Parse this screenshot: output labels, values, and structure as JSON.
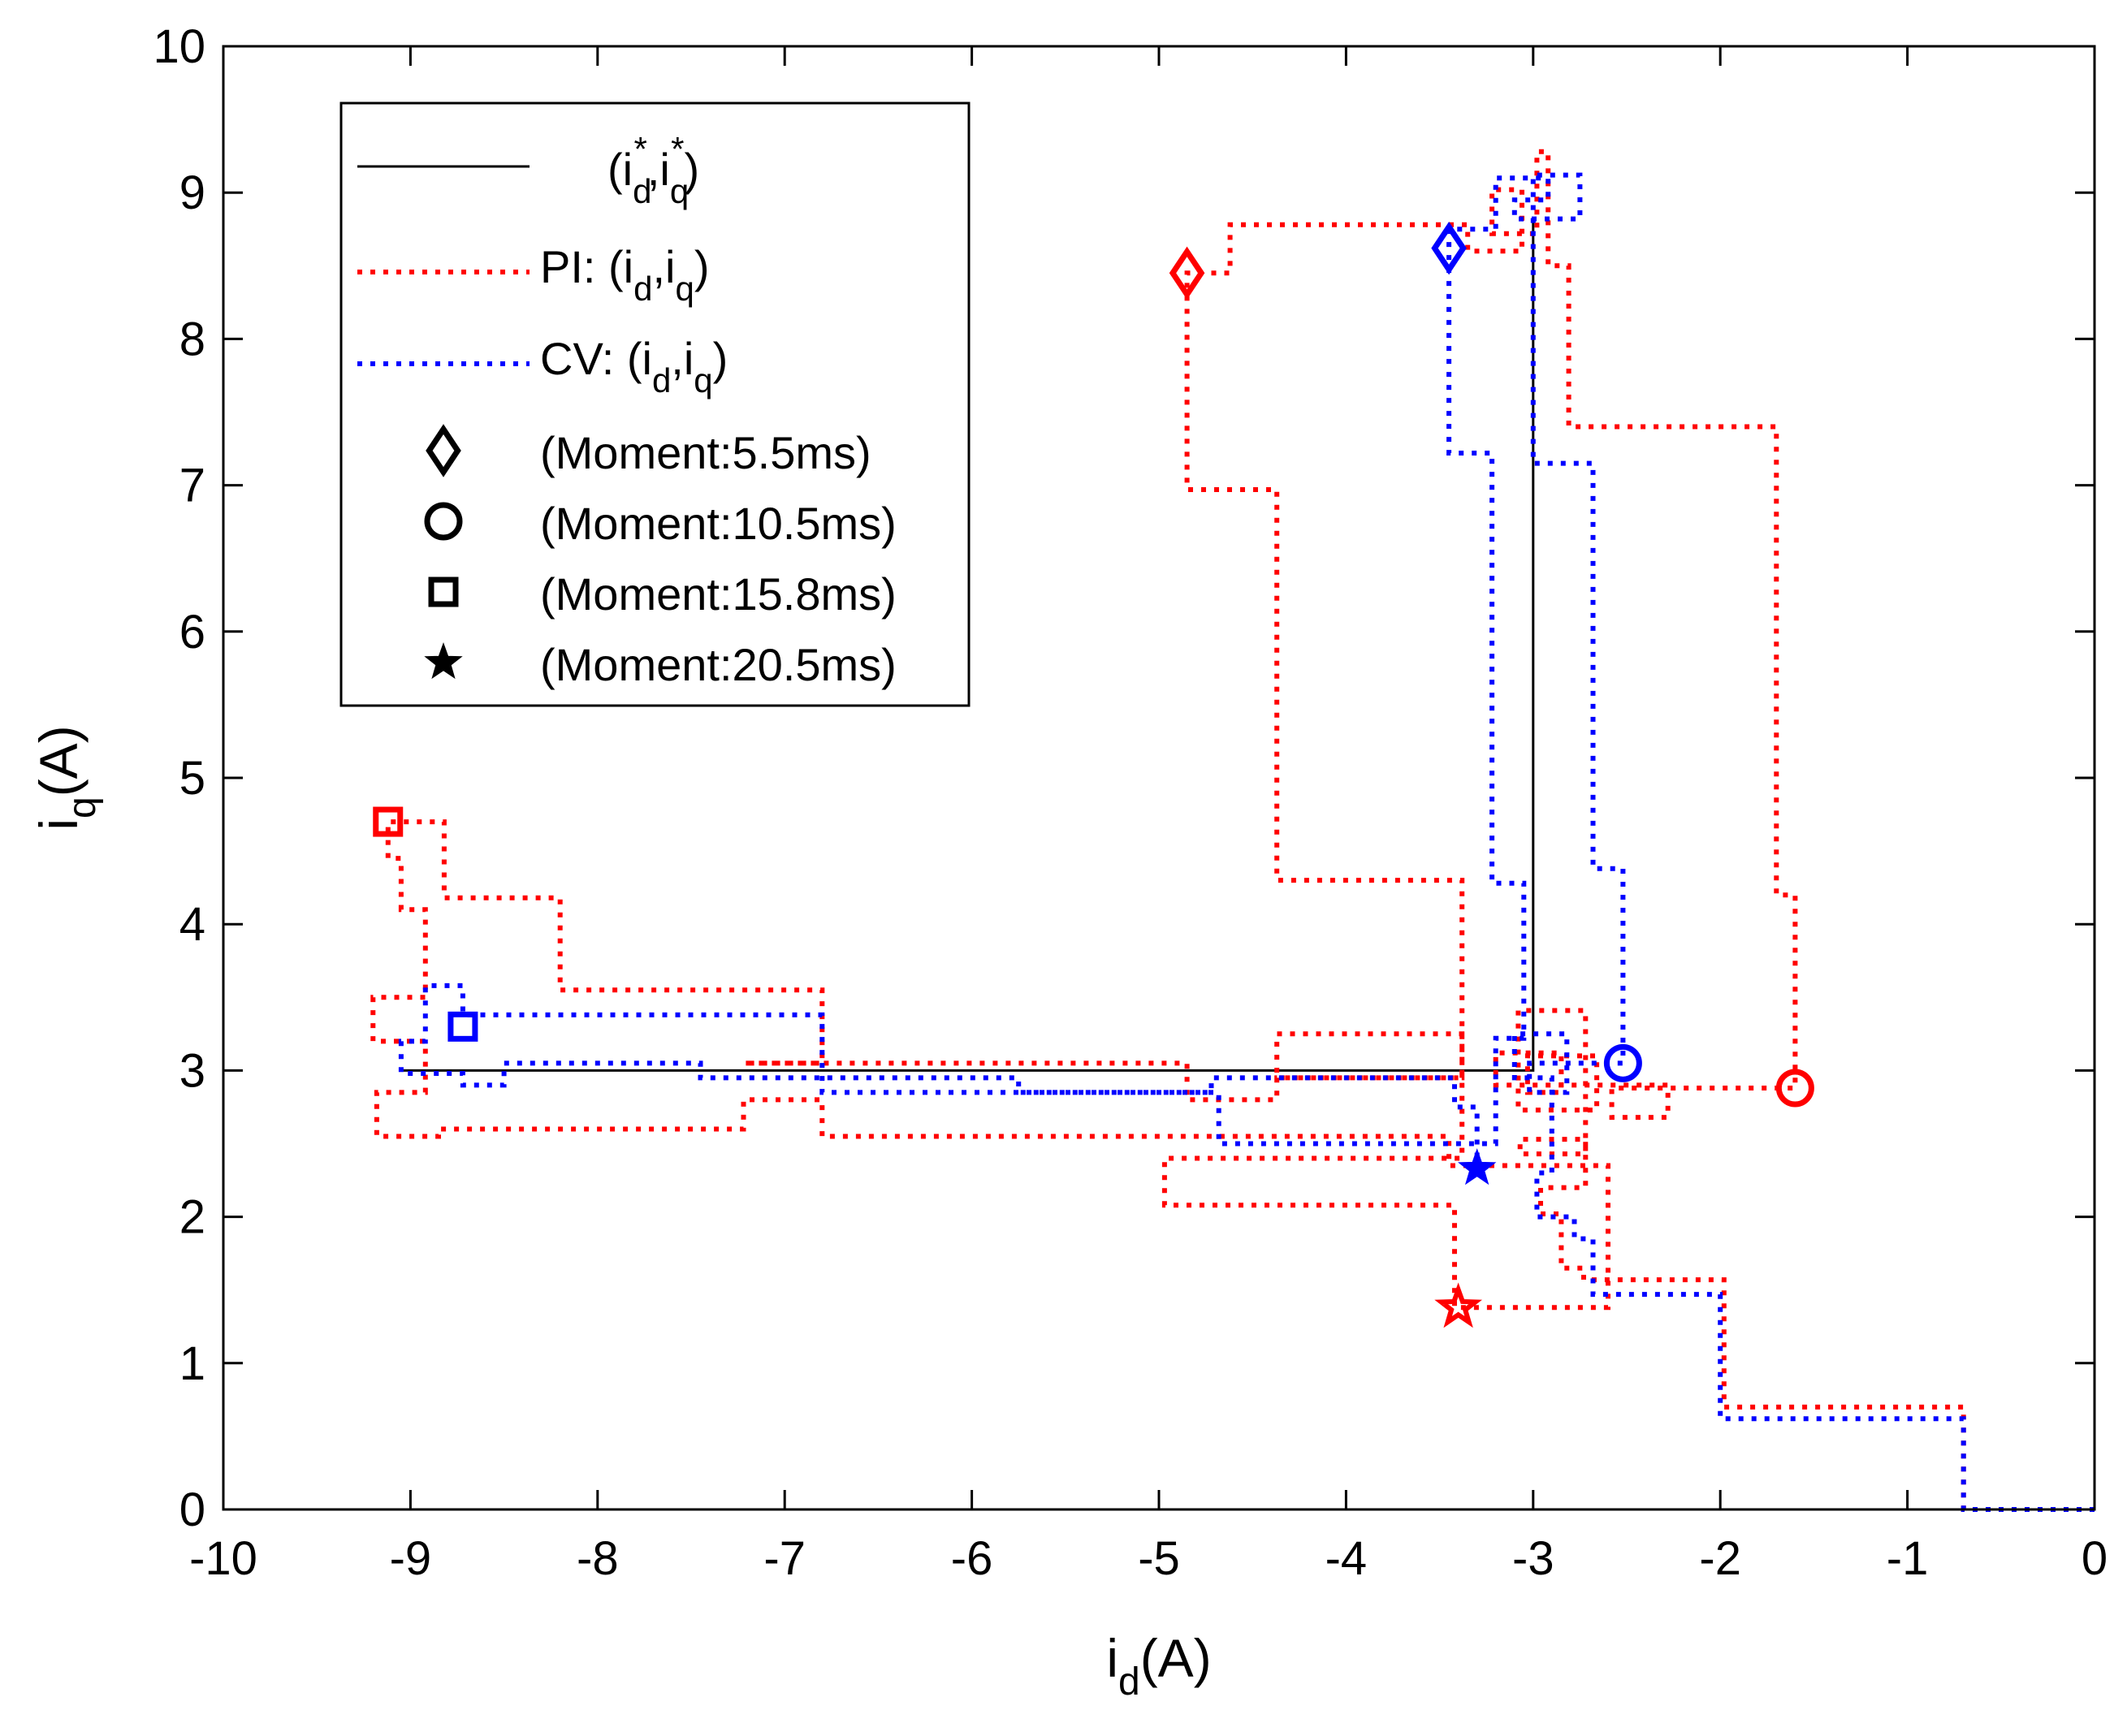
{
  "chart_data": {
    "type": "line",
    "title": "",
    "xlabel": {
      "main": "i",
      "sub": "d",
      "suffix": "(A)"
    },
    "ylabel": {
      "main": "i",
      "sub": "q",
      "suffix": "(A)"
    },
    "xlim": [
      -10,
      0
    ],
    "ylim": [
      0,
      10
    ],
    "x_ticks": [
      -10,
      -9,
      -8,
      -7,
      -6,
      -5,
      -4,
      -3,
      -2,
      -1,
      0
    ],
    "y_ticks": [
      0,
      1,
      2,
      3,
      4,
      5,
      6,
      7,
      8,
      9,
      10
    ],
    "grid": false,
    "legend_position": "top-left",
    "colors": {
      "reference": "#000000",
      "pi": "#ff0000",
      "cv": "#0000ff"
    },
    "series": [
      {
        "name": "reference",
        "legend": {
          "prefix": "",
          "main": "(i",
          "sub1": "d",
          "sup1": "*",
          "mid": ",i",
          "sub2": "q",
          "sup2": "*",
          "suffix": ")"
        },
        "style": "solid",
        "points": [
          [
            -9.05,
            3.0
          ],
          [
            -3.0,
            3.0
          ],
          [
            -3.0,
            8.8
          ]
        ]
      },
      {
        "name": "PI",
        "legend": {
          "prefix": "PI: ",
          "main": "(i",
          "sub1": "d",
          "sup1": "",
          "mid": ",i",
          "sub2": "q",
          "sup2": "",
          "suffix": ")"
        },
        "style": "dotted",
        "points": [
          [
            0.0,
            0.0
          ],
          [
            -0.7,
            0.0
          ],
          [
            -0.7,
            0.7
          ],
          [
            -1.98,
            0.7
          ],
          [
            -1.98,
            1.57
          ],
          [
            -2.73,
            1.57
          ],
          [
            -2.73,
            1.65
          ],
          [
            -2.85,
            1.65
          ],
          [
            -2.85,
            2.02
          ],
          [
            -2.96,
            2.02
          ],
          [
            -2.96,
            2.2
          ],
          [
            -2.72,
            2.2
          ],
          [
            -2.72,
            2.53
          ],
          [
            -3.07,
            2.53
          ],
          [
            -3.07,
            2.43
          ],
          [
            -2.72,
            2.43
          ],
          [
            -2.72,
            3.41
          ],
          [
            -3.08,
            3.41
          ],
          [
            -3.08,
            2.73
          ],
          [
            -2.66,
            2.73
          ],
          [
            -2.66,
            3.1
          ],
          [
            -3.03,
            3.1
          ],
          [
            -3.03,
            2.85
          ],
          [
            -2.85,
            2.85
          ],
          [
            -2.85,
            3.12
          ],
          [
            -3.2,
            3.12
          ],
          [
            -3.2,
            2.9
          ],
          [
            -2.28,
            2.9
          ],
          [
            -2.28,
            2.68
          ],
          [
            -2.58,
            2.68
          ],
          [
            -2.58,
            2.88
          ],
          [
            -1.6,
            2.88
          ],
          [
            -1.6,
            4.2
          ],
          [
            -1.7,
            4.2
          ],
          [
            -1.7,
            7.4
          ],
          [
            -2.81,
            7.4
          ],
          [
            -2.81,
            8.5
          ],
          [
            -2.92,
            8.5
          ],
          [
            -2.92,
            9.28
          ],
          [
            -2.98,
            9.28
          ],
          [
            -2.98,
            8.72
          ],
          [
            -3.22,
            8.72
          ],
          [
            -3.22,
            9.02
          ],
          [
            -3.06,
            9.02
          ],
          [
            -3.06,
            8.6
          ],
          [
            -3.35,
            8.6
          ],
          [
            -3.35,
            8.78
          ],
          [
            -4.62,
            8.78
          ],
          [
            -4.62,
            8.45
          ],
          [
            -4.85,
            8.45
          ],
          [
            -4.85,
            6.97
          ],
          [
            -4.37,
            6.97
          ],
          [
            -4.37,
            4.3
          ],
          [
            -3.38,
            4.3
          ],
          [
            -3.38,
            2.95
          ],
          [
            -4.37,
            2.95
          ],
          [
            -4.37,
            3.25
          ],
          [
            -3.38,
            3.25
          ],
          [
            -3.38,
            2.4
          ],
          [
            -4.97,
            2.4
          ],
          [
            -4.97,
            2.08
          ],
          [
            -3.42,
            2.08
          ],
          [
            -3.42,
            1.38
          ],
          [
            -3.35,
            1.38
          ],
          [
            -3.35,
            1.38
          ],
          [
            -2.6,
            1.38
          ],
          [
            -2.6,
            2.35
          ],
          [
            -3.45,
            2.35
          ],
          [
            -3.45,
            2.55
          ],
          [
            -6.8,
            2.55
          ],
          [
            -6.8,
            2.8
          ],
          [
            -7.22,
            2.8
          ],
          [
            -7.22,
            2.6
          ],
          [
            -8.85,
            2.6
          ],
          [
            -8.85,
            2.55
          ],
          [
            -9.18,
            2.55
          ],
          [
            -9.18,
            2.85
          ],
          [
            -8.92,
            2.85
          ],
          [
            -8.92,
            3.2
          ],
          [
            -9.2,
            3.2
          ],
          [
            -9.2,
            3.5
          ],
          [
            -8.92,
            3.5
          ],
          [
            -8.92,
            4.1
          ],
          [
            -9.05,
            4.1
          ],
          [
            -9.05,
            4.45
          ],
          [
            -9.12,
            4.45
          ],
          [
            -9.12,
            4.7
          ],
          [
            -8.82,
            4.7
          ],
          [
            -8.82,
            4.18
          ],
          [
            -8.2,
            4.18
          ],
          [
            -8.2,
            3.55
          ],
          [
            -6.8,
            3.55
          ],
          [
            -6.8,
            3.05
          ],
          [
            -7.22,
            3.05
          ],
          [
            -7.22,
            3.05
          ],
          [
            -4.85,
            3.05
          ],
          [
            -4.85,
            2.8
          ],
          [
            -4.37,
            2.8
          ],
          [
            -4.37,
            2.95
          ],
          [
            -3.4,
            2.95
          ]
        ]
      },
      {
        "name": "CV",
        "legend": {
          "prefix": "CV: ",
          "main": "(i",
          "sub1": "d",
          "sup1": "",
          "mid": ",i",
          "sub2": "q",
          "sup2": "",
          "suffix": ")"
        },
        "style": "dotted",
        "points": [
          [
            0.0,
            0.0
          ],
          [
            -0.7,
            0.0
          ],
          [
            -0.7,
            0.62
          ],
          [
            -2.0,
            0.62
          ],
          [
            -2.0,
            1.47
          ],
          [
            -2.68,
            1.47
          ],
          [
            -2.68,
            1.85
          ],
          [
            -2.78,
            1.85
          ],
          [
            -2.78,
            2.0
          ],
          [
            -2.98,
            2.0
          ],
          [
            -2.98,
            2.3
          ],
          [
            -2.9,
            2.3
          ],
          [
            -2.9,
            2.95
          ],
          [
            -3.1,
            2.95
          ],
          [
            -3.1,
            3.25
          ],
          [
            -2.82,
            3.25
          ],
          [
            -2.82,
            2.85
          ],
          [
            -3.02,
            2.85
          ],
          [
            -3.02,
            3.05
          ],
          [
            -2.52,
            3.05
          ],
          [
            -2.52,
            4.38
          ],
          [
            -2.68,
            4.38
          ],
          [
            -2.68,
            7.15
          ],
          [
            -3.0,
            7.15
          ],
          [
            -3.0,
            9.12
          ],
          [
            -2.75,
            9.12
          ],
          [
            -2.75,
            8.82
          ],
          [
            -3.1,
            8.82
          ],
          [
            -3.1,
            8.95
          ],
          [
            -2.92,
            8.95
          ],
          [
            -2.92,
            9.1
          ],
          [
            -3.2,
            9.1
          ],
          [
            -3.2,
            8.75
          ],
          [
            -3.45,
            8.75
          ],
          [
            -3.45,
            7.22
          ],
          [
            -3.22,
            7.22
          ],
          [
            -3.22,
            4.28
          ],
          [
            -3.05,
            4.28
          ],
          [
            -3.05,
            3.22
          ],
          [
            -3.2,
            3.22
          ],
          [
            -3.2,
            2.5
          ],
          [
            -4.68,
            2.5
          ],
          [
            -4.68,
            2.85
          ],
          [
            -6.8,
            2.85
          ],
          [
            -6.8,
            3.38
          ],
          [
            -8.72,
            3.38
          ],
          [
            -8.72,
            3.58
          ],
          [
            -8.92,
            3.58
          ],
          [
            -8.92,
            3.2
          ],
          [
            -9.05,
            3.2
          ],
          [
            -9.05,
            2.98
          ],
          [
            -8.72,
            2.98
          ],
          [
            -8.72,
            2.9
          ],
          [
            -8.5,
            2.9
          ],
          [
            -8.5,
            3.05
          ],
          [
            -7.45,
            3.05
          ],
          [
            -7.45,
            2.95
          ],
          [
            -5.75,
            2.95
          ],
          [
            -5.75,
            2.85
          ],
          [
            -4.72,
            2.85
          ],
          [
            -4.72,
            2.95
          ],
          [
            -3.42,
            2.95
          ],
          [
            -3.42,
            2.75
          ],
          [
            -3.3,
            2.75
          ],
          [
            -3.3,
            2.33
          ]
        ]
      }
    ],
    "markers": [
      {
        "moment": "5.5ms",
        "shape": "diamond",
        "series": "PI",
        "x": -4.85,
        "y": 8.45
      },
      {
        "moment": "5.5ms",
        "shape": "diamond",
        "series": "CV",
        "x": -3.45,
        "y": 8.62
      },
      {
        "moment": "10.5ms",
        "shape": "circle",
        "series": "PI",
        "x": -1.6,
        "y": 2.88
      },
      {
        "moment": "10.5ms",
        "shape": "circle",
        "series": "CV",
        "x": -2.52,
        "y": 3.05
      },
      {
        "moment": "15.8ms",
        "shape": "square",
        "series": "PI",
        "x": -9.12,
        "y": 4.7
      },
      {
        "moment": "15.8ms",
        "shape": "square",
        "series": "CV",
        "x": -8.72,
        "y": 3.3
      },
      {
        "moment": "20.5ms",
        "shape": "star",
        "series": "PI",
        "x": -3.4,
        "y": 1.38
      },
      {
        "moment": "20.5ms",
        "shape": "star",
        "series": "CV",
        "x": -3.3,
        "y": 2.33
      }
    ],
    "marker_legend": [
      {
        "shape": "diamond",
        "label": "(Moment:5.5ms)"
      },
      {
        "shape": "circle",
        "label": "(Moment:10.5ms)"
      },
      {
        "shape": "square",
        "label": "(Moment:15.8ms)"
      },
      {
        "shape": "star",
        "label": "(Moment:20.5ms)"
      }
    ]
  }
}
